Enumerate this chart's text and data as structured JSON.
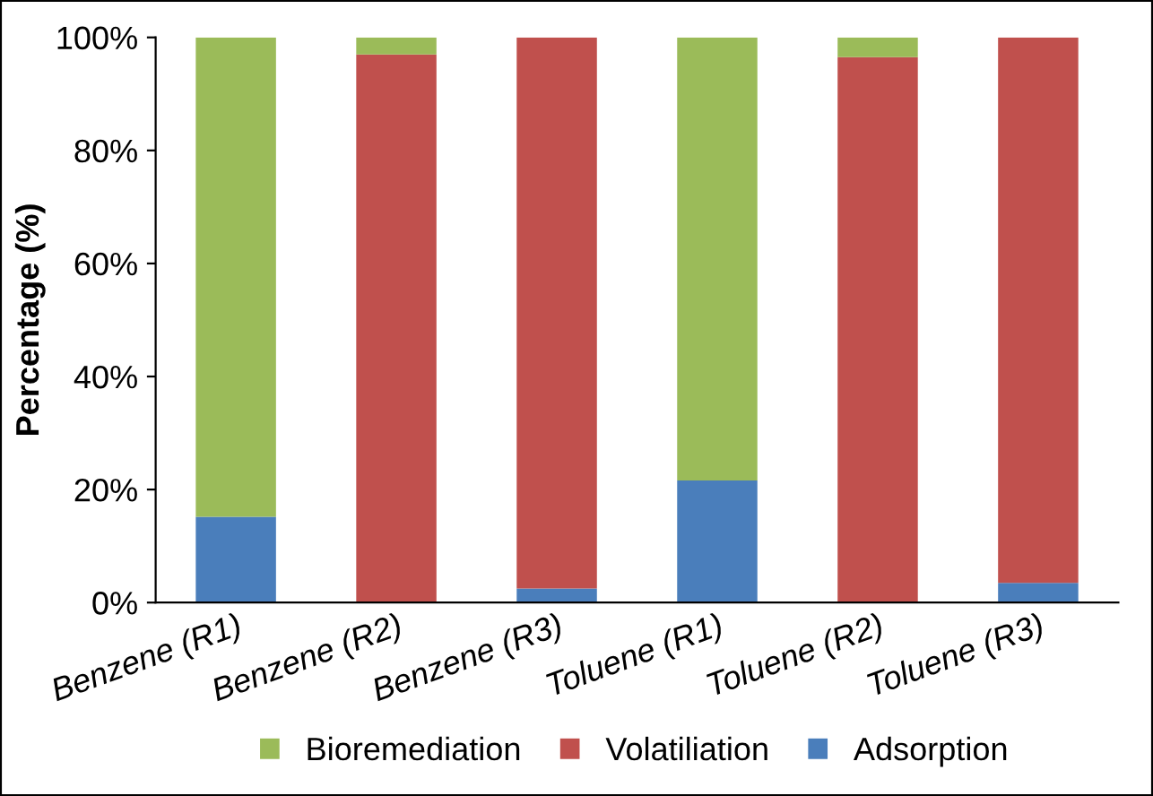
{
  "chart_data": {
    "type": "bar",
    "stacked": true,
    "ylabel": "Percentage (%)",
    "categories": [
      "Benzene (R1)",
      "Benzene (R2)",
      "Benzene (R3)",
      "Toluene (R1)",
      "Toluene (R2)",
      "Toluene (R3)"
    ],
    "series": [
      {
        "name": "Adsorption",
        "color": "#4a7ebb",
        "values": [
          15.2,
          0,
          2.5,
          21.6,
          0,
          3.5
        ]
      },
      {
        "name": "Volatiliation",
        "color": "#c0504d",
        "values": [
          0,
          97,
          97.5,
          0,
          96.5,
          96.5
        ]
      },
      {
        "name": "Bioremediation",
        "color": "#9bbb59",
        "values": [
          84.8,
          3,
          0,
          78.4,
          3.5,
          0
        ]
      }
    ],
    "ylim": [
      0,
      100
    ],
    "yticks": [
      {
        "value": 0,
        "label": "0%"
      },
      {
        "value": 20,
        "label": "20%"
      },
      {
        "value": 40,
        "label": "40%"
      },
      {
        "value": 60,
        "label": "60%"
      },
      {
        "value": 80,
        "label": "80%"
      },
      {
        "value": 100,
        "label": "100%"
      }
    ],
    "grid": false,
    "legend": "bottom"
  }
}
